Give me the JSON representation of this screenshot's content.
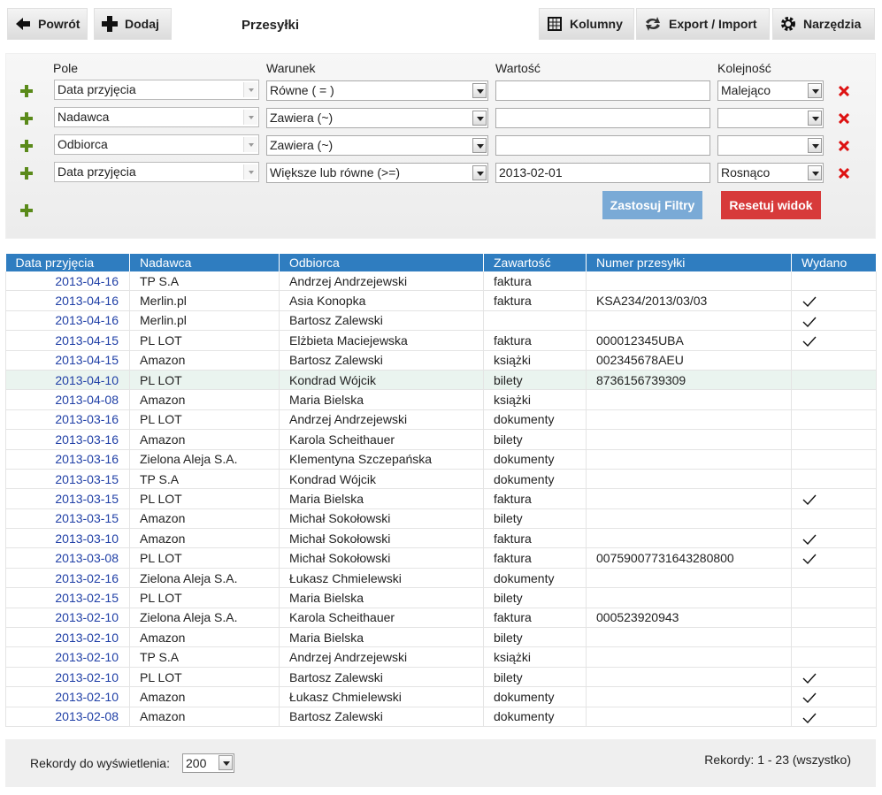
{
  "toolbar": {
    "back": "Powrót",
    "add": "Dodaj",
    "title": "Przesyłki",
    "columns": "Kolumny",
    "export": "Export / Import",
    "tools": "Narzędzia"
  },
  "filters": {
    "headers": [
      "Pole",
      "Warunek",
      "Wartość",
      "Kolejność"
    ],
    "rows": [
      {
        "field": "Data przyjęcia",
        "condition": "Równe ( = )",
        "order": "Malejąco"
      },
      {
        "field": "Nadawca",
        "condition": "Zawiera (~)"
      },
      {
        "field": "Odbiorca",
        "condition": "Zawiera (~)"
      },
      {
        "field": "Data przyjęcia",
        "condition": "Większe lub równe (>=)",
        "value": "2013-02-01",
        "order": "Rosnąco"
      }
    ],
    "apply": "Zastosuj Filtry",
    "reset": "Resetuj widok"
  },
  "table": {
    "columns": [
      "Data przyjęcia",
      "Nadawca",
      "Odbiorca",
      "Zawartość",
      "Numer przesyłki",
      "Wydano"
    ],
    "rows": [
      {
        "date": "2013-04-16",
        "sender": "TP S.A",
        "recipient": "Andrzej Andrzejewski",
        "content": "faktura",
        "delivered": false
      },
      {
        "date": "2013-04-16",
        "sender": "Merlin.pl",
        "recipient": "Asia Konopka",
        "content": "faktura",
        "number": "KSA234/2013/03/03",
        "delivered": true
      },
      {
        "date": "2013-04-16",
        "sender": "Merlin.pl",
        "recipient": "Bartosz Zalewski",
        "delivered": true
      },
      {
        "date": "2013-04-15",
        "sender": "PL LOT",
        "recipient": "Elżbieta Maciejewska",
        "content": "faktura",
        "number": "000012345UBA",
        "delivered": true
      },
      {
        "date": "2013-04-15",
        "sender": "Amazon",
        "recipient": "Bartosz Zalewski",
        "content": "książki",
        "number": "002345678AEU",
        "delivered": false
      },
      {
        "date": "2013-04-10",
        "sender": "PL LOT",
        "recipient": "Kondrad Wójcik",
        "content": "bilety",
        "number": "8736156739309",
        "delivered": false
      },
      {
        "date": "2013-04-08",
        "sender": "Amazon",
        "recipient": "Maria Bielska",
        "content": "książki",
        "delivered": false
      },
      {
        "date": "2013-03-16",
        "sender": "PL LOT",
        "recipient": "Andrzej Andrzejewski",
        "content": "dokumenty",
        "delivered": false
      },
      {
        "date": "2013-03-16",
        "sender": "Amazon",
        "recipient": "Karola Scheithauer",
        "content": "bilety",
        "delivered": false
      },
      {
        "date": "2013-03-16",
        "sender": "Zielona Aleja S.A.",
        "recipient": "Klementyna Szczepańska",
        "content": "dokumenty",
        "delivered": false
      },
      {
        "date": "2013-03-15",
        "sender": "TP S.A",
        "recipient": "Kondrad Wójcik",
        "content": "dokumenty",
        "delivered": false
      },
      {
        "date": "2013-03-15",
        "sender": "PL LOT",
        "recipient": "Maria Bielska",
        "content": "faktura",
        "delivered": true
      },
      {
        "date": "2013-03-15",
        "sender": "Amazon",
        "recipient": "Michał Sokołowski",
        "content": "bilety",
        "delivered": false
      },
      {
        "date": "2013-03-10",
        "sender": "Amazon",
        "recipient": "Michał Sokołowski",
        "content": "faktura",
        "delivered": true
      },
      {
        "date": "2013-03-08",
        "sender": "PL LOT",
        "recipient": "Michał Sokołowski",
        "content": "faktura",
        "number": "00759007731643280800",
        "delivered": true
      },
      {
        "date": "2013-02-16",
        "sender": "Zielona Aleja S.A.",
        "recipient": "Łukasz Chmielewski",
        "content": "dokumenty",
        "delivered": false
      },
      {
        "date": "2013-02-15",
        "sender": "PL LOT",
        "recipient": "Maria Bielska",
        "content": "bilety",
        "delivered": false
      },
      {
        "date": "2013-02-10",
        "sender": "Zielona Aleja S.A.",
        "recipient": "Karola Scheithauer",
        "content": "faktura",
        "number": "000523920943",
        "delivered": false
      },
      {
        "date": "2013-02-10",
        "sender": "Amazon",
        "recipient": "Maria Bielska",
        "content": "bilety",
        "delivered": false
      },
      {
        "date": "2013-02-10",
        "sender": "TP S.A",
        "recipient": "Andrzej Andrzejewski",
        "content": "książki",
        "delivered": false
      },
      {
        "date": "2013-02-10",
        "sender": "PL LOT",
        "recipient": "Bartosz Zalewski",
        "content": "bilety",
        "delivered": true
      },
      {
        "date": "2013-02-10",
        "sender": "Amazon",
        "recipient": "Łukasz Chmielewski",
        "content": "dokumenty",
        "delivered": true
      },
      {
        "date": "2013-02-08",
        "sender": "Amazon",
        "recipient": "Bartosz Zalewski",
        "content": "dokumenty",
        "delivered": true
      }
    ]
  },
  "footer": {
    "records_label": "Rekordy do wyświetlenia:",
    "page_size": 200,
    "records": "Rekordy: 1 - 23 (wszystko)"
  }
}
